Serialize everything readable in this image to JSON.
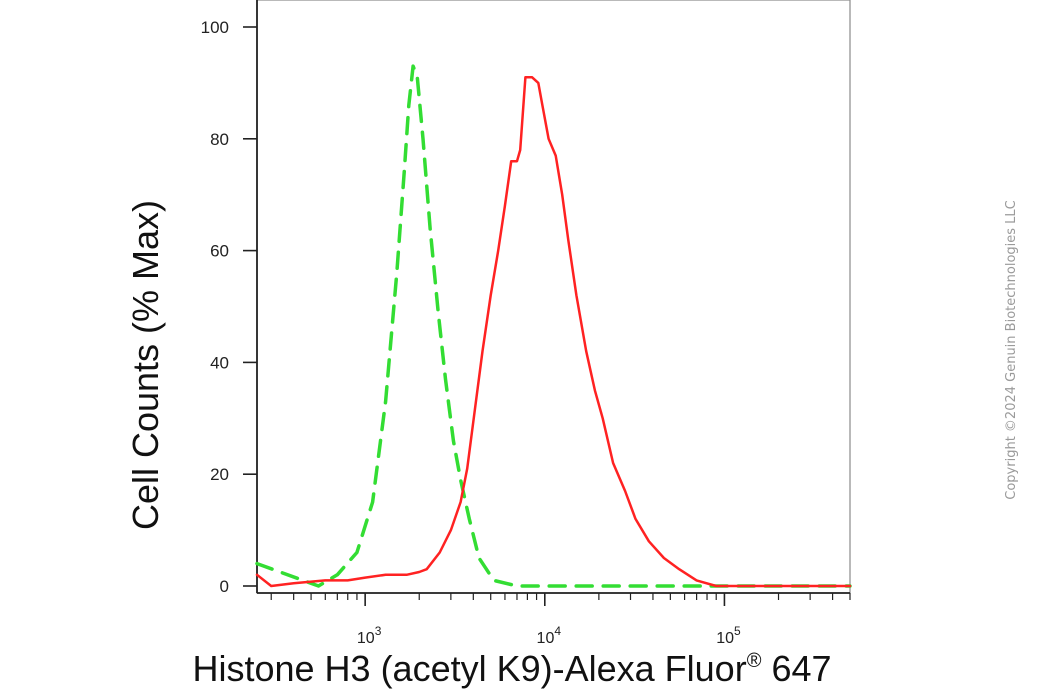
{
  "chart_data": {
    "type": "line",
    "xlabel": "Histone H3 (acetyl K9)-Alexa Fluor",
    "xlabel_superscript": "®",
    "xlabel_suffix": " 647",
    "ylabel": "Cell Counts (% Max)",
    "x_scale": "log",
    "xlim": [
      250,
      500000
    ],
    "ylim": [
      0,
      100
    ],
    "y_ticks": [
      0,
      20,
      40,
      60,
      80,
      100
    ],
    "x_major_ticks": [
      1000,
      10000,
      100000
    ],
    "x_major_tick_labels": [
      {
        "base": "10",
        "exp": "3"
      },
      {
        "base": "10",
        "exp": "4"
      },
      {
        "base": "10",
        "exp": "5"
      }
    ],
    "grid": false,
    "series": [
      {
        "color": "#33dd33",
        "style": "dashed",
        "x": [
          250,
          550,
          700,
          900,
          1100,
          1300,
          1500,
          1650,
          1750,
          1850,
          1950,
          2100,
          2300,
          2550,
          2800,
          3100,
          3400,
          3800,
          4300,
          5200,
          7000,
          20000,
          90000,
          500000
        ],
        "y": [
          4,
          0,
          2,
          6,
          15,
          33,
          56,
          74,
          86,
          93,
          91,
          80,
          64,
          49,
          37,
          26,
          19,
          12,
          5,
          1,
          0,
          0,
          0,
          0
        ]
      },
      {
        "color": "#ff2222",
        "style": "solid",
        "x": [
          250,
          300,
          400,
          600,
          800,
          1000,
          1300,
          1700,
          2000,
          2200,
          2600,
          3000,
          3400,
          3700,
          4100,
          4500,
          5000,
          5500,
          6000,
          6500,
          7000,
          7300,
          7800,
          8500,
          9200,
          9700,
          10500,
          11500,
          12500,
          13500,
          15000,
          17000,
          19000,
          21000,
          24000,
          28000,
          32000,
          38000,
          46000,
          56000,
          70000,
          90000,
          150000,
          500000
        ],
        "y": [
          2,
          0,
          0.5,
          1,
          1,
          1.5,
          2,
          2,
          2.5,
          3,
          6,
          10,
          15,
          21,
          32,
          42,
          52,
          60,
          68,
          76,
          76,
          78,
          91,
          91,
          90,
          86,
          80,
          77,
          70,
          62,
          52,
          42,
          35,
          30,
          22,
          17,
          12,
          8,
          5,
          3,
          1,
          0,
          0,
          0
        ]
      }
    ]
  },
  "watermark": "Copyright ©2024 Genuin Biotechnologies LLC"
}
